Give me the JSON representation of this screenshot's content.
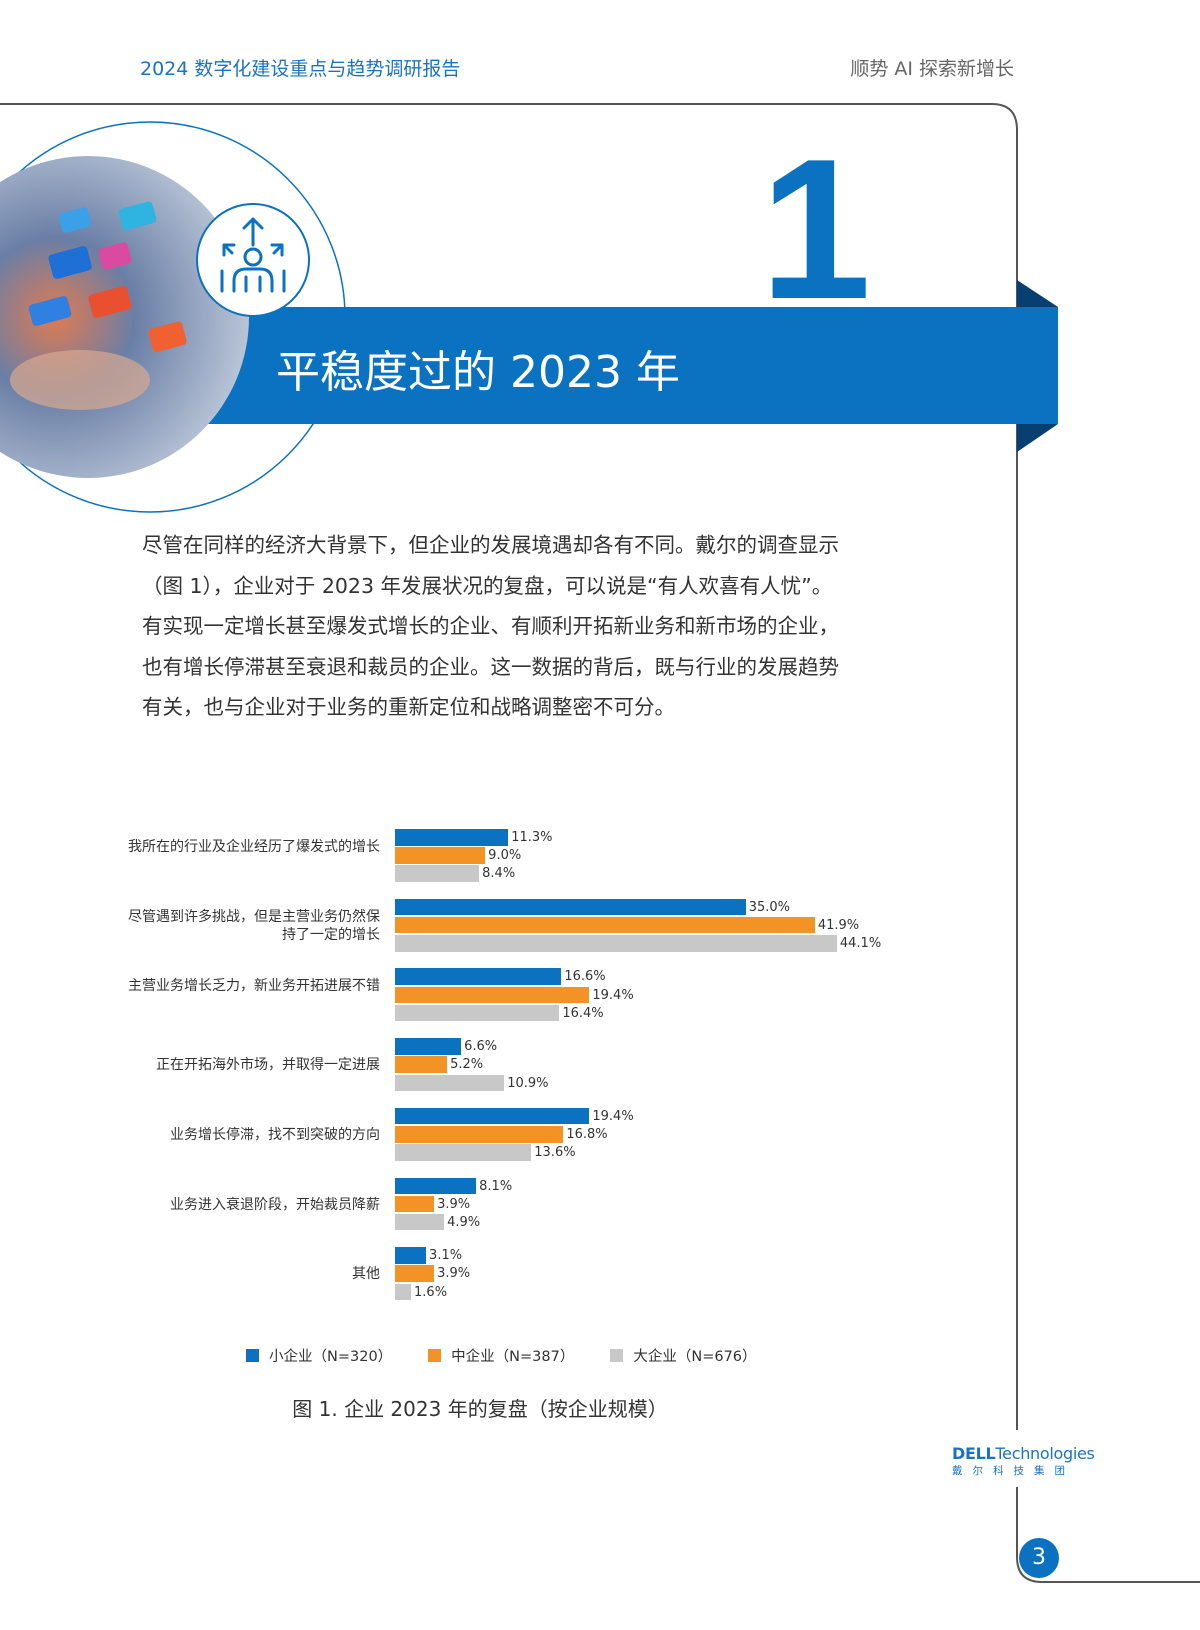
{
  "header": {
    "report_title": "2024 数字化建设重点与趋势调研报告",
    "tagline": "顺势 AI  探索新增长"
  },
  "section": {
    "number": "1",
    "title": "平稳度过的 2023 年",
    "icon": "growth-person-arrows-icon"
  },
  "body_text": "尽管在同样的经济大背景下，但企业的发展境遇却各有不同。戴尔的调查显示（图 1），企业对于 2023 年发展状况的复盘，可以说是“有人欢喜有人忧”。有实现一定增长甚至爆发式增长的企业、有顺利开拓新业务和新市场的企业，也有增长停滞甚至衰退和裁员的企业。这一数据的背后，既与行业的发展趋势有关，也与企业对于业务的重新定位和战略调整密不可分。",
  "chart_data": {
    "type": "bar",
    "orientation": "horizontal",
    "title": "图 1. 企业 2023 年的复盘（按企业规模）",
    "categories": [
      "我所在的行业及企业经历了爆发式的增长",
      "尽管遇到许多挑战，但是主营业务仍然保持了一定的增长",
      "主营业务增长乏力，新业务开拓进展不错",
      "正在开拓海外市场，并取得一定进展",
      "业务增长停滞，找不到突破的方向",
      "业务进入衰退阶段，开始裁员降薪",
      "其他"
    ],
    "series": [
      {
        "name": "小企业（N=320）",
        "color": "#0a72c0",
        "values": [
          11.3,
          35.0,
          16.6,
          6.6,
          19.4,
          8.1,
          3.1
        ],
        "labels": [
          "11.3%",
          "35.0%",
          "16.6%",
          "6.6%",
          "19.4%",
          "8.1%",
          "3.1%"
        ]
      },
      {
        "name": "中企业（N=387）",
        "color": "#f39325",
        "values": [
          9.0,
          41.9,
          19.4,
          5.2,
          16.8,
          3.9,
          3.9
        ],
        "labels": [
          "9.0%",
          "41.9%",
          "19.4%",
          "5.2%",
          "16.8%",
          "3.9%",
          "3.9%"
        ]
      },
      {
        "name": "大企业（N=676）",
        "color": "#c8c8c8",
        "values": [
          8.4,
          44.1,
          16.4,
          10.9,
          13.6,
          4.9,
          1.6
        ],
        "labels": [
          "8.4%",
          "44.1%",
          "16.4%",
          "10.9%",
          "13.6%",
          "4.9%",
          "1.6%"
        ]
      }
    ],
    "unit": "%",
    "legend_position": "bottom",
    "grid": false
  },
  "footer": {
    "logo_en_bold": "DELL",
    "logo_en_rest": "Technologies",
    "logo_cn": "戴尔科技集团",
    "page_number": "3"
  },
  "colors": {
    "brand_blue": "#0a72c0",
    "orange": "#f39325",
    "gray": "#c8c8c8"
  }
}
